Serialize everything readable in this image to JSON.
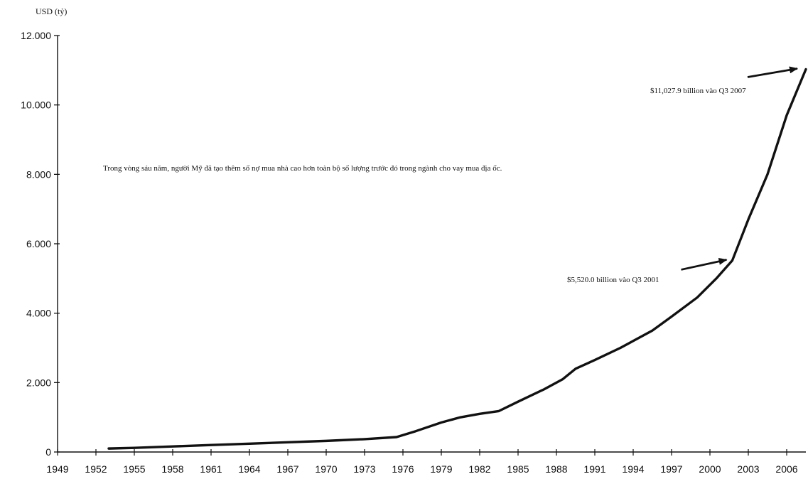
{
  "chart_data": {
    "type": "line",
    "title": "",
    "xlabel": "",
    "ylabel": "USD (tỷ)",
    "xlim": [
      1949,
      2007.5
    ],
    "ylim": [
      0,
      12000
    ],
    "grid": false,
    "x_ticks": [
      1949,
      1952,
      1955,
      1958,
      1961,
      1964,
      1967,
      1970,
      1973,
      1976,
      1979,
      1982,
      1985,
      1988,
      1991,
      1994,
      1997,
      2000,
      2003,
      2006
    ],
    "x_tick_labels": [
      "1949",
      "1952",
      "1955",
      "1958",
      "1961",
      "1964",
      "1967",
      "1970",
      "1973",
      "1976",
      "1979",
      "1982",
      "1985",
      "1988",
      "1991",
      "1994",
      "1997",
      "2000",
      "2003",
      "2006"
    ],
    "y_ticks": [
      0,
      2000,
      4000,
      6000,
      8000,
      10000,
      12000
    ],
    "y_tick_labels": [
      "0",
      "2.000",
      "4.000",
      "6.000",
      "8.000",
      "10.000",
      "12.000"
    ],
    "series": [
      {
        "x": [
          1953,
          1955,
          1958,
          1961,
          1964,
          1967,
          1970,
          1973,
          1975.5,
          1977,
          1979,
          1980.5,
          1982,
          1983.5,
          1985,
          1987,
          1988.5,
          1989.5,
          1991,
          1993,
          1995.5,
          1997,
          1999,
          2000.5,
          2001.75,
          2003,
          2004.5,
          2006,
          2007.5
        ],
        "values": [
          100,
          120,
          160,
          200,
          240,
          280,
          320,
          370,
          430,
          600,
          850,
          1000,
          1100,
          1180,
          1450,
          1800,
          2100,
          2400,
          2650,
          3000,
          3500,
          3900,
          4450,
          5000,
          5520,
          6700,
          8000,
          9700,
          11028
        ]
      }
    ],
    "annotations": [
      {
        "text": "Trong vòng sáu năm, người Mỹ đã tạo thêm số nợ mua nhà cao hơn toàn bộ số lượng trước đó trong ngành cho vay mua địa ốc."
      },
      {
        "text": "$11,027.9 billion vào Q3 2007",
        "x": 2007.5,
        "y": 11028
      },
      {
        "text": "$5,520.0 billion vào Q3 2001",
        "x": 2001.75,
        "y": 5520
      }
    ]
  }
}
